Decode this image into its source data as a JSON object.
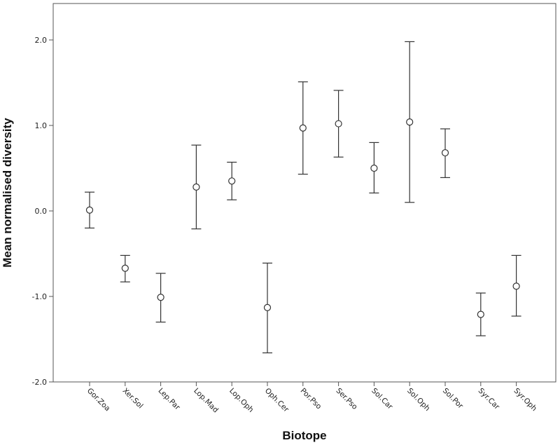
{
  "chart_data": {
    "type": "scatter",
    "xlabel": "Biotope",
    "ylabel": "Mean normalised diversity",
    "ylim": [
      -2.0,
      2.0
    ],
    "yticks": [
      -2.0,
      -1.0,
      0.0,
      1.0,
      2.0
    ],
    "ytick_labels": [
      "-2.0",
      "-1.0",
      "0.0",
      "1.0",
      "2.0"
    ],
    "categories": [
      "Gor.Zoa",
      "Xer.Sol",
      "Lep.Par",
      "Lop.Mad",
      "Lop.Oph",
      "Oph.Cer",
      "Por.Pso",
      "Ser.Pso",
      "Sol.Car",
      "Sol.Oph",
      "Sol.Por",
      "Syr.Car",
      "Syr.Oph"
    ],
    "series": [
      {
        "mean": [
          0.01,
          -0.67,
          -1.01,
          0.28,
          0.35,
          -1.13,
          0.97,
          1.02,
          0.5,
          1.04,
          0.68,
          -1.21,
          -0.88
        ],
        "upper": [
          0.22,
          -0.52,
          -0.73,
          0.77,
          0.57,
          -0.61,
          1.51,
          1.41,
          0.8,
          1.98,
          0.96,
          -0.96,
          -0.52
        ],
        "lower": [
          -0.2,
          -0.83,
          -1.3,
          -0.21,
          0.13,
          -1.66,
          0.43,
          0.63,
          0.21,
          0.1,
          0.39,
          -1.46,
          -1.23
        ]
      }
    ],
    "grid": false,
    "colors": {
      "marks": "#333333",
      "axis": "#555555"
    }
  }
}
